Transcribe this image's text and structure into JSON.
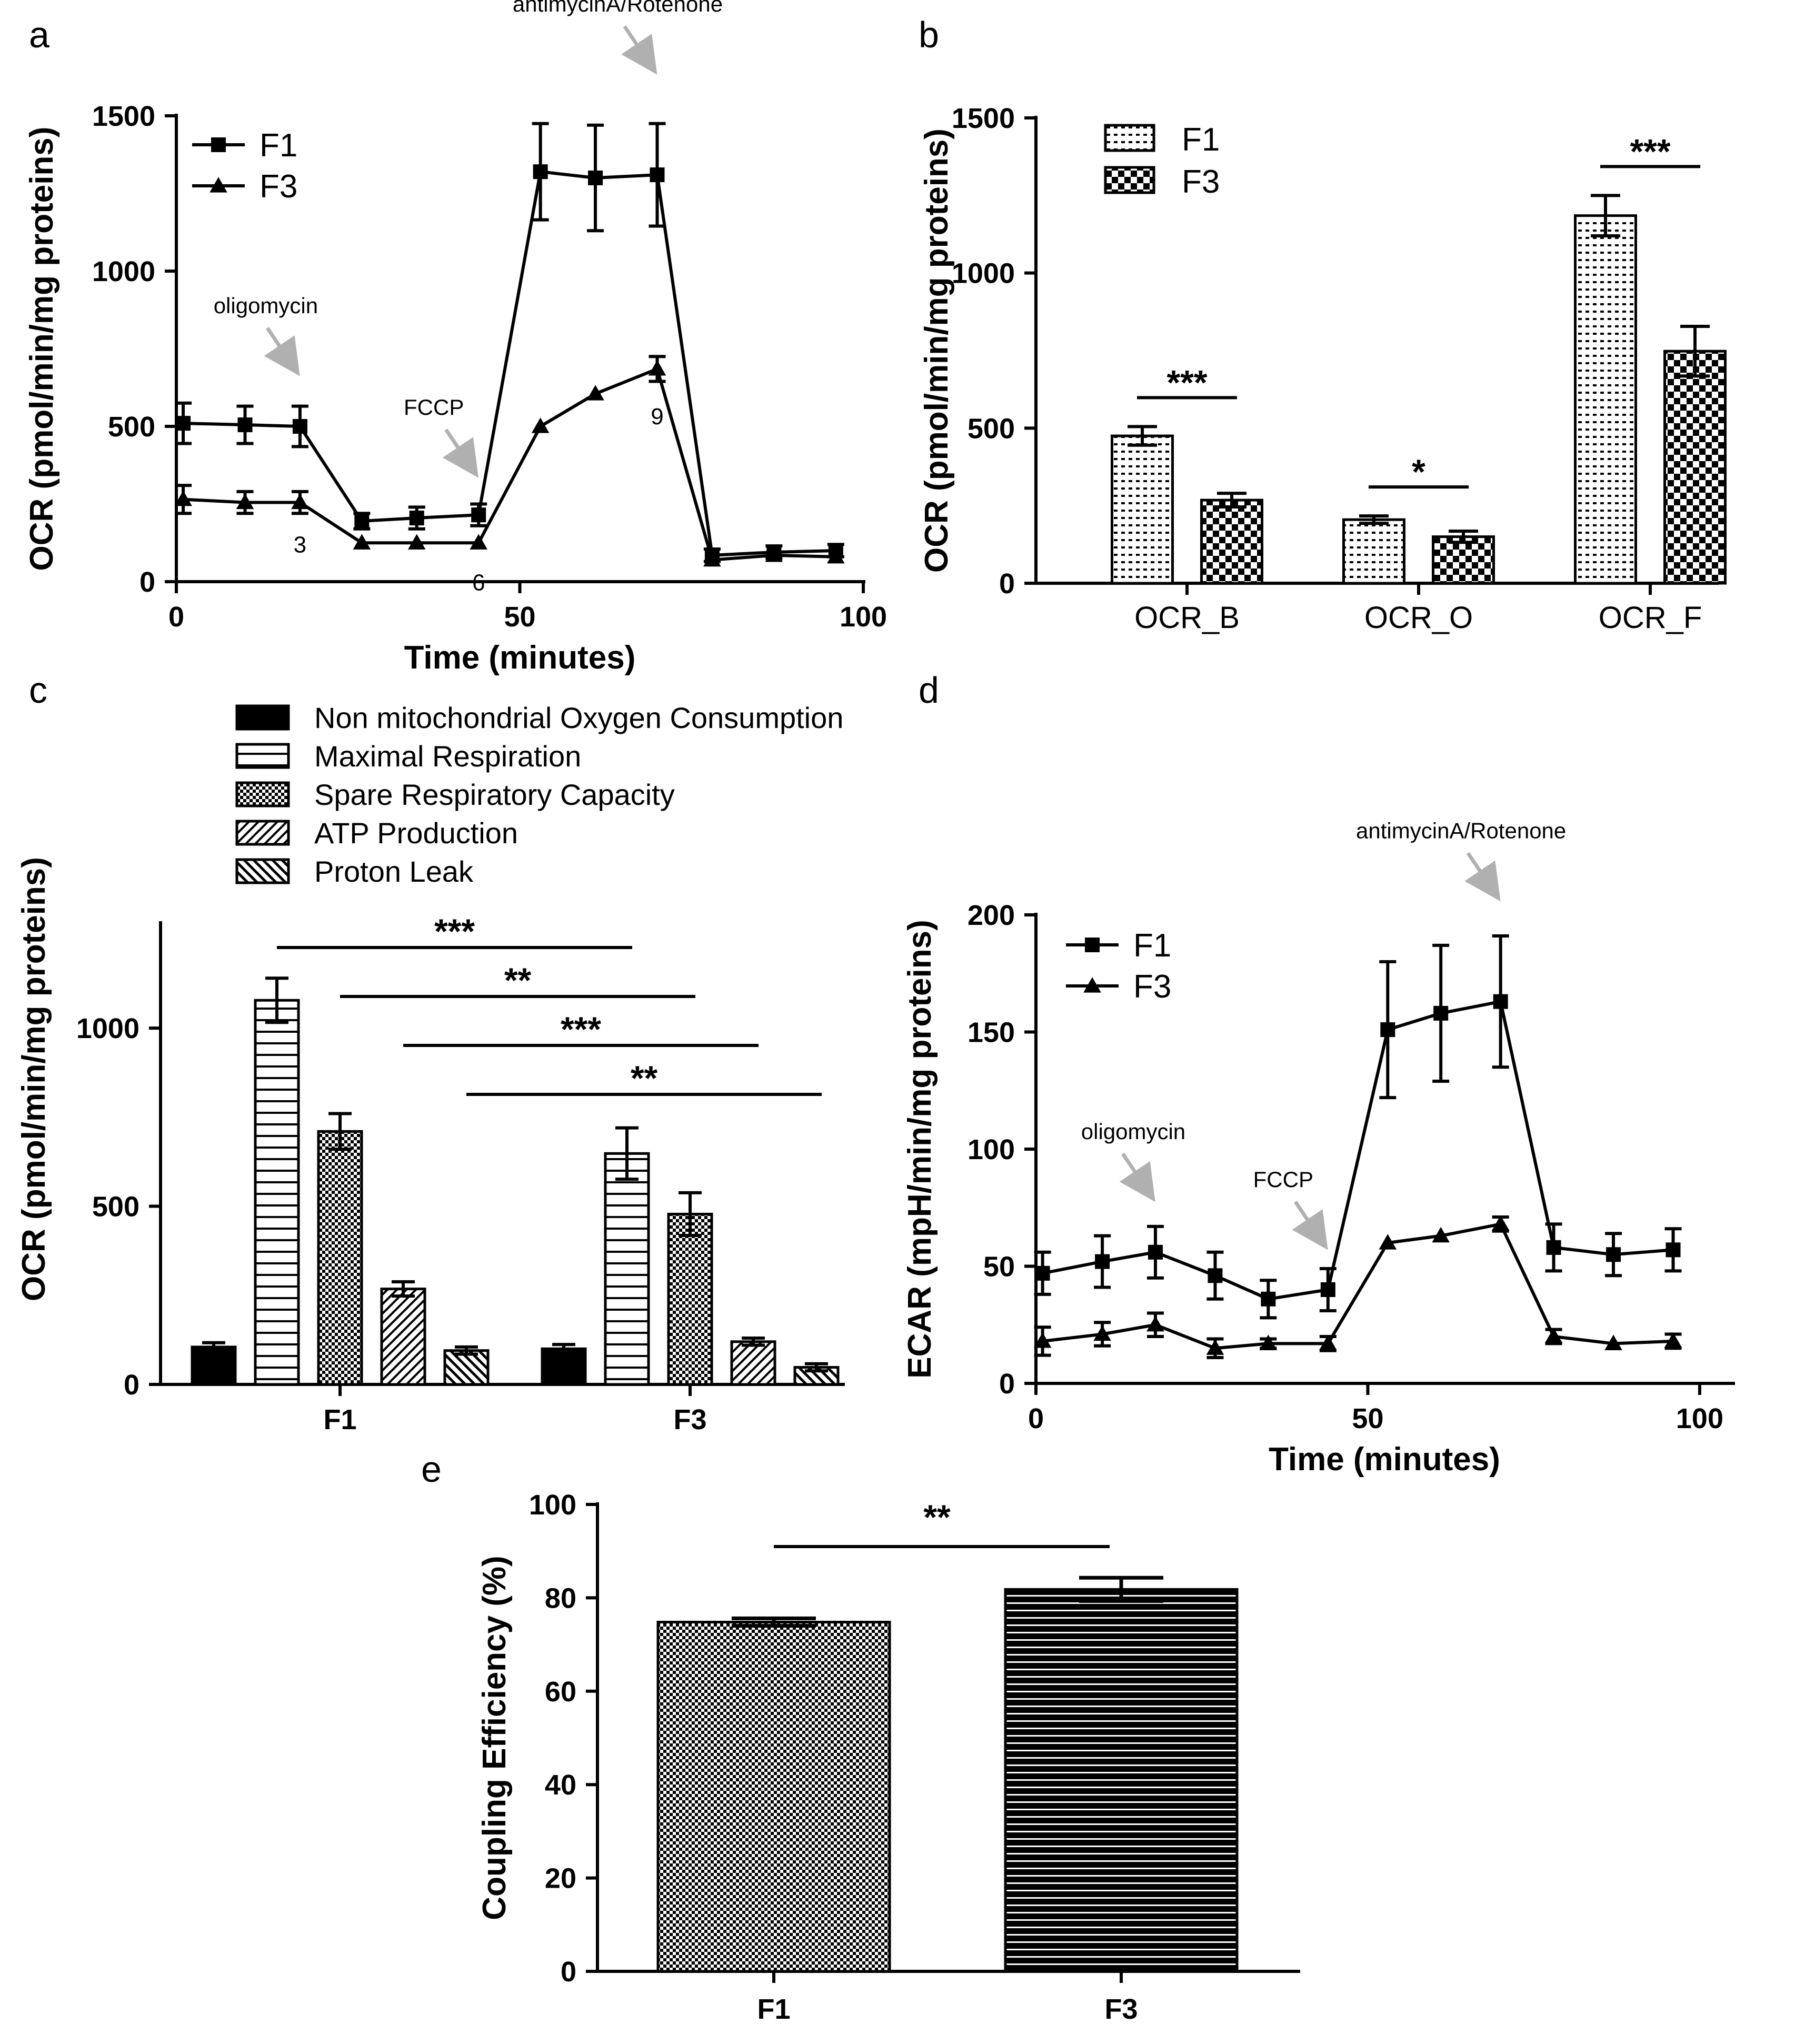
{
  "chart_data": [
    {
      "panel": "a",
      "type": "line",
      "xlabel": "Time (minutes)",
      "ylabel": "OCR (pmol/min/mg proteins)",
      "xlim": [
        0,
        100
      ],
      "ylim": [
        0,
        1500
      ],
      "xticks": [
        "0",
        "50",
        "100"
      ],
      "yticks": [
        "0",
        "500",
        "1000",
        "1500"
      ],
      "x": [
        1,
        10,
        18,
        27,
        35,
        44,
        53,
        61,
        70,
        78,
        87,
        96
      ],
      "series": [
        {
          "name": "F1",
          "marker": "square",
          "values": [
            510,
            505,
            500,
            195,
            205,
            215,
            1320,
            1300,
            1310,
            85,
            95,
            100
          ],
          "err": [
            65,
            60,
            65,
            25,
            35,
            35,
            155,
            170,
            165,
            20,
            20,
            20
          ]
        },
        {
          "name": "F3",
          "marker": "triangle",
          "values": [
            265,
            255,
            255,
            125,
            125,
            125,
            500,
            605,
            685,
            70,
            85,
            80
          ],
          "err": [
            45,
            35,
            35,
            0,
            0,
            0,
            0,
            0,
            40,
            0,
            0,
            0
          ]
        }
      ],
      "injections": [
        {
          "label": "oligomycin",
          "x": 18
        },
        {
          "label": "FCCP",
          "x": 44
        },
        {
          "label": "antimycinA/Rotenone",
          "x": 70
        }
      ],
      "point_labels": [
        {
          "text": "3",
          "x": 18
        },
        {
          "text": "6",
          "x": 44
        },
        {
          "text": "9",
          "x": 70
        }
      ],
      "legend": "top-left"
    },
    {
      "panel": "b",
      "type": "bar",
      "ylabel": "OCR (pmol/min/mg proteins)",
      "ylim": [
        0,
        1500
      ],
      "yticks": [
        "0",
        "500",
        "1000",
        "1500"
      ],
      "categories": [
        "OCR_B",
        "OCR_O",
        "OCR_F"
      ],
      "series": [
        {
          "name": "F1",
          "values": [
            475,
            205,
            1185
          ],
          "err": [
            30,
            12,
            65
          ]
        },
        {
          "name": "F3",
          "values": [
            268,
            150,
            748
          ],
          "err": [
            22,
            18,
            80
          ]
        }
      ],
      "significance": [
        "***",
        "*",
        "***"
      ],
      "legend": "top-left"
    },
    {
      "panel": "c",
      "type": "bar",
      "ylabel": "OCR (pmol/min/mg proteins)",
      "ylim": [
        0,
        1300
      ],
      "yticks": [
        "0",
        "500",
        "1000"
      ],
      "categories": [
        "F1",
        "F3"
      ],
      "series": [
        {
          "name": "Non mitochondrial Oxygen Consumption",
          "values": [
            105,
            100
          ],
          "err": [
            12,
            12
          ]
        },
        {
          "name": "Maximal Respiration",
          "values": [
            1078,
            648
          ],
          "err": [
            62,
            72
          ]
        },
        {
          "name": "Spare Respiratory Capacity",
          "values": [
            710,
            478
          ],
          "err": [
            50,
            60
          ]
        },
        {
          "name": "ATP Production",
          "values": [
            268,
            120
          ],
          "err": [
            20,
            10
          ]
        },
        {
          "name": "Proton Leak",
          "values": [
            95,
            48
          ],
          "err": [
            10,
            10
          ]
        }
      ],
      "comparisons": [
        {
          "series": "Maximal Respiration",
          "label": "***"
        },
        {
          "series": "Spare Respiratory Capacity",
          "label": "**"
        },
        {
          "series": "ATP Production",
          "label": "***"
        },
        {
          "series": "Proton Leak",
          "label": "**"
        }
      ],
      "legend": "top"
    },
    {
      "panel": "d",
      "type": "line",
      "xlabel": "Time (minutes)",
      "ylabel": "ECAR (mpH/min/mg proteins)",
      "xlim": [
        0,
        105
      ],
      "ylim": [
        0,
        200
      ],
      "xticks": [
        "0",
        "50",
        "100"
      ],
      "yticks": [
        "0",
        "50",
        "100",
        "150",
        "200"
      ],
      "x": [
        1,
        10,
        18,
        27,
        35,
        44,
        53,
        61,
        70,
        78,
        87,
        96
      ],
      "series": [
        {
          "name": "F1",
          "marker": "square",
          "values": [
            47,
            52,
            56,
            46,
            36,
            40,
            151,
            158,
            163,
            58,
            55,
            57
          ],
          "err": [
            9,
            11,
            11,
            10,
            8,
            9,
            29,
            29,
            28,
            10,
            9,
            9
          ]
        },
        {
          "name": "F3",
          "marker": "triangle",
          "values": [
            18,
            21,
            25,
            15,
            17,
            17,
            60,
            63,
            68,
            20,
            17,
            18
          ],
          "err": [
            6,
            5,
            5,
            4,
            2,
            3,
            0,
            0,
            3,
            3,
            0,
            3
          ]
        }
      ],
      "injections": [
        {
          "label": "oligomycin",
          "x": 18
        },
        {
          "label": "FCCP",
          "x": 44
        },
        {
          "label": "antimycinA/Rotenone",
          "x": 70
        }
      ],
      "legend": "top-left"
    },
    {
      "panel": "e",
      "type": "bar",
      "ylabel": "Coupling Efficiency (%)",
      "ylim": [
        0,
        100
      ],
      "yticks": [
        "0",
        "20",
        "40",
        "60",
        "80",
        "100"
      ],
      "categories": [
        "F1",
        "F3"
      ],
      "values": [
        74.8,
        81.8
      ],
      "err": [
        0.8,
        2.5
      ],
      "significance": "**"
    }
  ]
}
